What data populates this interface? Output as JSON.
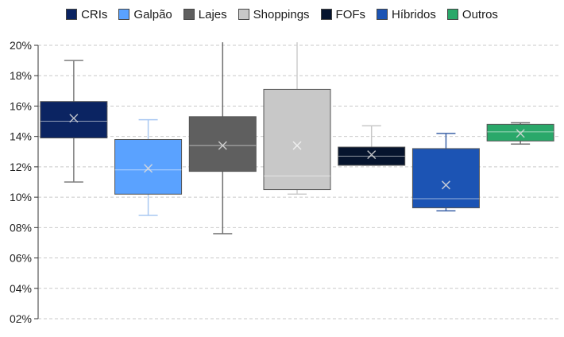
{
  "chart_data": {
    "type": "boxplot",
    "legend_position": "top",
    "grid": true,
    "ylim": [
      2,
      20
    ],
    "yticks": [
      "02%",
      "04%",
      "06%",
      "08%",
      "10%",
      "12%",
      "14%",
      "16%",
      "18%",
      "20%"
    ],
    "series": [
      {
        "name": "CRIs",
        "color": "#0b2462",
        "whisker_color": "#7f7f7f",
        "min": 11.0,
        "q1": 13.9,
        "median": 15.0,
        "q3": 16.3,
        "max": 19.0,
        "mean": 15.2
      },
      {
        "name": "Galpão",
        "color": "#5aa2ff",
        "whisker_color": "#a9c8f2",
        "min": 8.8,
        "q1": 10.2,
        "median": 11.8,
        "q3": 13.8,
        "max": 15.1,
        "mean": 11.9
      },
      {
        "name": "Lajes",
        "color": "#5f5f5f",
        "whisker_color": "#6f6f6f",
        "min": 7.6,
        "q1": 11.7,
        "median": 13.4,
        "q3": 15.3,
        "max": 20.2,
        "mean": 13.4
      },
      {
        "name": "Shoppings",
        "color": "#c8c8c8",
        "whisker_color": "#cdcdcd",
        "min": 10.2,
        "q1": 10.5,
        "median": 11.4,
        "q3": 17.1,
        "max": 20.2,
        "mean": 13.4
      },
      {
        "name": "FOFs",
        "color": "#06142e",
        "whisker_color": "#c8c8c8",
        "min": 12.1,
        "q1": 12.1,
        "median": 12.7,
        "q3": 13.3,
        "max": 14.7,
        "mean": 12.8
      },
      {
        "name": "Híbridos",
        "color": "#1c54b4",
        "whisker_color": "#3d63a8",
        "min": 9.1,
        "q1": 9.3,
        "median": 9.9,
        "q3": 13.2,
        "max": 14.2,
        "mean": 10.8
      },
      {
        "name": "Outros",
        "color": "#2aa86a",
        "whisker_color": "#6f6f6f",
        "min": 13.5,
        "q1": 13.7,
        "median": 14.3,
        "q3": 14.8,
        "max": 14.9,
        "mean": 14.2
      }
    ]
  }
}
